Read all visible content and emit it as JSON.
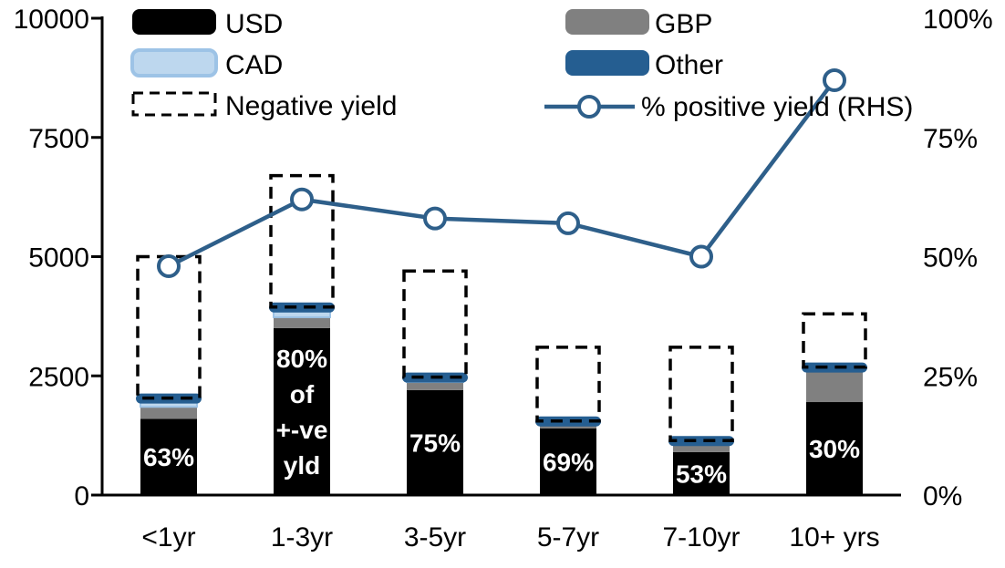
{
  "chart_data": {
    "type": "stacked-bar+line",
    "title": "",
    "categories": [
      "<1yr",
      "1-3yr",
      "3-5yr",
      "5-7yr",
      "7-10yr",
      "10+ yrs"
    ],
    "series": [
      {
        "name": "USD",
        "color": "#000000",
        "values": [
          1600,
          3500,
          2200,
          1400,
          900,
          1950
        ]
      },
      {
        "name": "GBP",
        "color": "#808080",
        "values": [
          250,
          230,
          170,
          100,
          200,
          680
        ]
      },
      {
        "name": "CAD",
        "color": "#BDD7EE",
        "border": "#9DC3E6",
        "values": [
          110,
          190,
          120,
          70,
          60,
          70
        ]
      },
      {
        "name": "Other",
        "color": "#255E91",
        "values": [
          150,
          100,
          60,
          60,
          60,
          60
        ]
      }
    ],
    "negative_yield_outline": {
      "name": "Negative yield",
      "values": [
        5000,
        6700,
        4700,
        3100,
        3100,
        3800
      ]
    },
    "line_series": {
      "name": "% positive yield (RHS)",
      "color": "#2E5F8A",
      "axis": "right",
      "values": [
        48,
        62,
        58,
        57,
        50,
        87
      ]
    },
    "bar_labels": [
      "63%",
      "80%|of|+-ve|yld",
      "75%",
      "69%",
      "53%",
      "30%"
    ],
    "left_axis": {
      "min": 0,
      "max": 10000,
      "tick_values": [
        0,
        2500,
        5000,
        7500,
        10000
      ],
      "tick_labels": [
        "0",
        "2500",
        "5000",
        "7500",
        "10000"
      ]
    },
    "right_axis": {
      "min": 0,
      "max": 100,
      "tick_values": [
        0,
        25,
        50,
        75,
        100
      ],
      "tick_labels": [
        "0%",
        "25%",
        "50%",
        "75%",
        "100%"
      ]
    },
    "legend": {
      "usd": "USD",
      "gbp": "GBP",
      "cad": "CAD",
      "other": "Other",
      "negative": "Negative yield",
      "positive": "% positive yield (RHS)"
    },
    "grid": "off",
    "legend_position": "top-inside"
  }
}
